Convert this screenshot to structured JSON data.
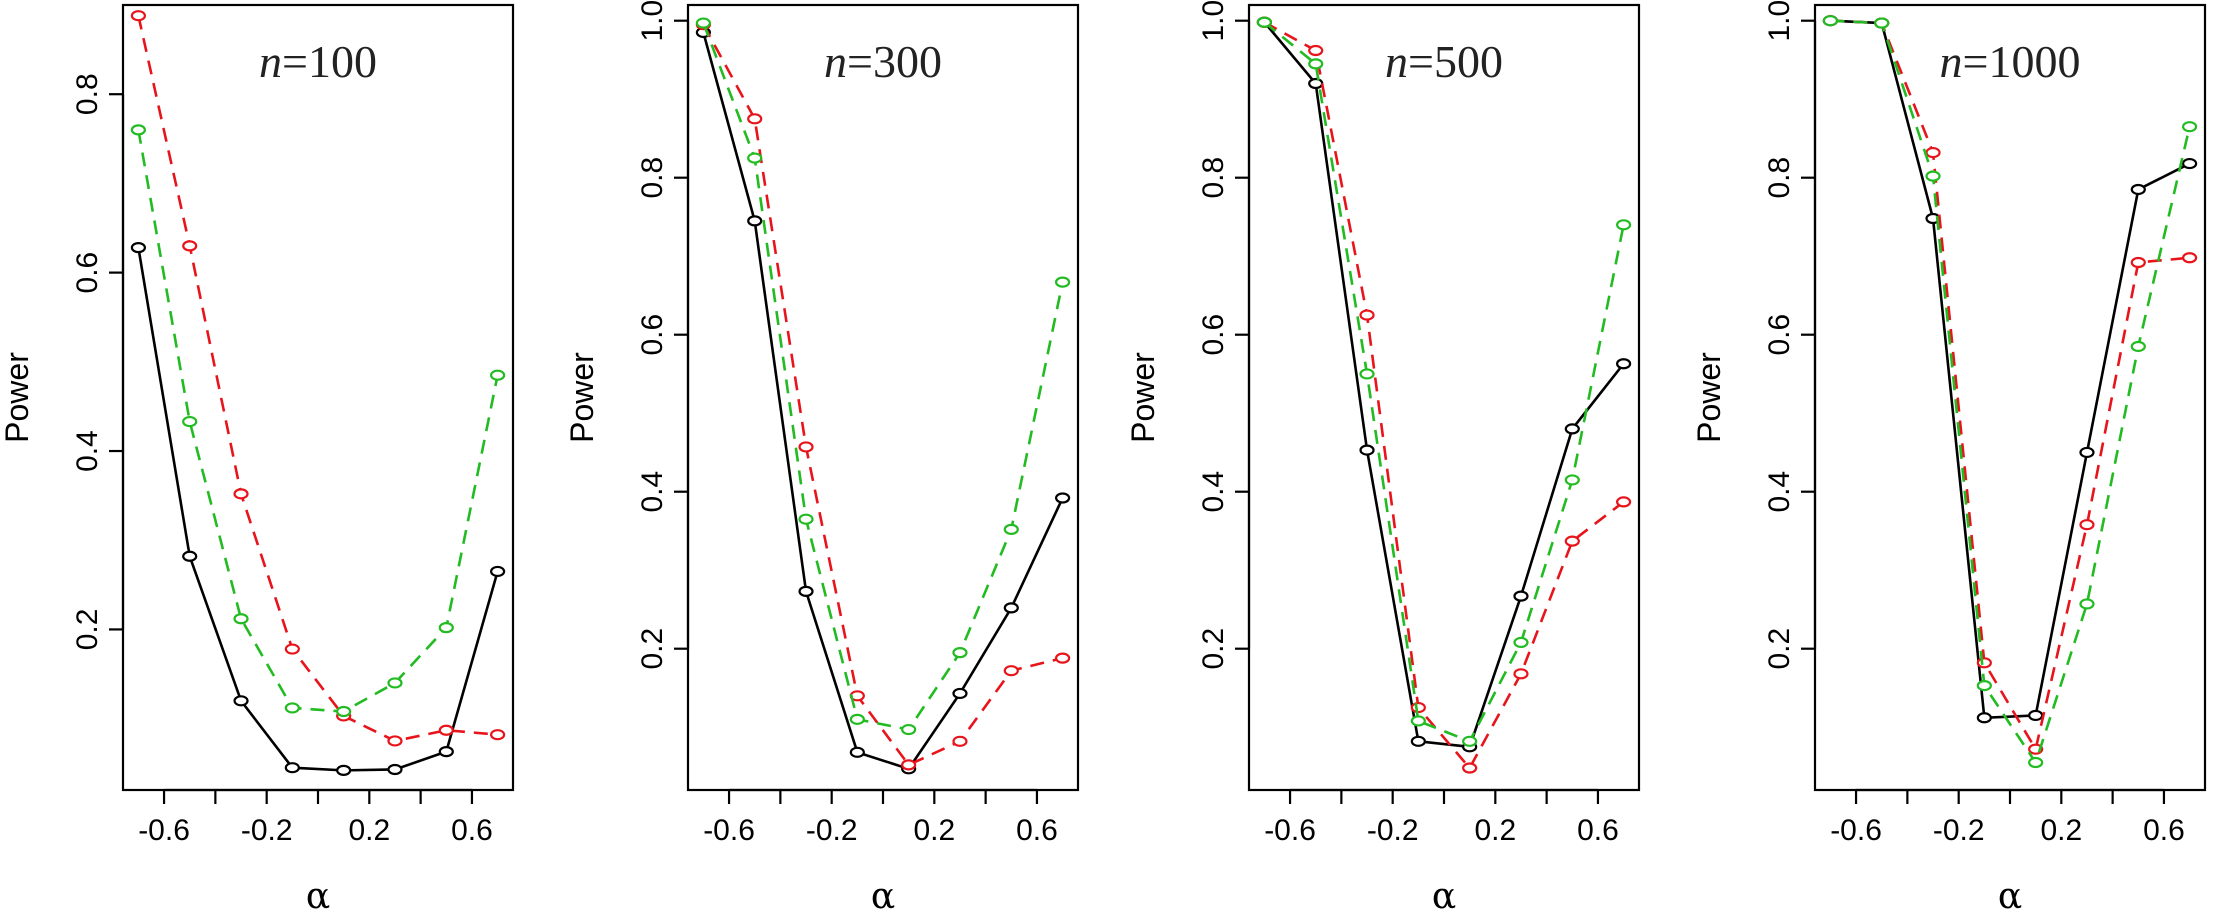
{
  "chart_data": [
    {
      "type": "line",
      "title_n": "n",
      "title_value": "=100",
      "xlabel": "α",
      "ylabel": "Power",
      "xlim": [
        -0.76,
        0.76
      ],
      "ylim": [
        0.02,
        0.9
      ],
      "xticks": [
        -0.6,
        -0.4,
        -0.2,
        0.0,
        0.2,
        0.4,
        0.6
      ],
      "xtick_labels": [
        "-0.6",
        "",
        "-0.2",
        "",
        "0.2",
        "",
        "0.6"
      ],
      "yticks": [
        0.2,
        0.4,
        0.6,
        0.8
      ],
      "ytick_labels": [
        "0.2",
        "0.4",
        "0.6",
        "0.8"
      ],
      "x": [
        -0.7,
        -0.5,
        -0.3,
        -0.1,
        0.1,
        0.3,
        0.5,
        0.7
      ],
      "series": [
        {
          "color": "#000000",
          "dash": "solid",
          "values": [
            0.628,
            0.282,
            0.12,
            0.045,
            0.042,
            0.043,
            0.063,
            0.265
          ]
        },
        {
          "color": "#e8141b",
          "dash": "dashed",
          "values": [
            0.888,
            0.63,
            0.352,
            0.178,
            0.103,
            0.075,
            0.087,
            0.082
          ]
        },
        {
          "color": "#22bb22",
          "dash": "dashed",
          "values": [
            0.76,
            0.433,
            0.212,
            0.112,
            0.108,
            0.14,
            0.202,
            0.485
          ]
        }
      ]
    },
    {
      "type": "line",
      "title_n": "n",
      "title_value": "=300",
      "xlabel": "α",
      "ylabel": "Power",
      "xlim": [
        -0.76,
        0.76
      ],
      "ylim": [
        0.02,
        1.02
      ],
      "xticks": [
        -0.6,
        -0.4,
        -0.2,
        0.0,
        0.2,
        0.4,
        0.6
      ],
      "xtick_labels": [
        "-0.6",
        "",
        "-0.2",
        "",
        "0.2",
        "",
        "0.6"
      ],
      "yticks": [
        0.2,
        0.4,
        0.6,
        0.8,
        1.0
      ],
      "ytick_labels": [
        "0.2",
        "0.4",
        "0.6",
        "0.8",
        "1.0"
      ],
      "x": [
        -0.7,
        -0.5,
        -0.3,
        -0.1,
        0.1,
        0.3,
        0.5,
        0.7
      ],
      "series": [
        {
          "color": "#000000",
          "dash": "solid",
          "values": [
            0.985,
            0.745,
            0.273,
            0.068,
            0.047,
            0.143,
            0.252,
            0.392
          ]
        },
        {
          "color": "#e8141b",
          "dash": "dashed",
          "values": [
            0.995,
            0.875,
            0.457,
            0.14,
            0.052,
            0.082,
            0.172,
            0.188
          ]
        },
        {
          "color": "#22bb22",
          "dash": "dashed",
          "values": [
            0.997,
            0.825,
            0.365,
            0.11,
            0.097,
            0.195,
            0.352,
            0.667
          ]
        }
      ]
    },
    {
      "type": "line",
      "title_n": "n",
      "title_value": "=500",
      "xlabel": "α",
      "ylabel": "Power",
      "xlim": [
        -0.76,
        0.76
      ],
      "ylim": [
        0.02,
        1.02
      ],
      "xticks": [
        -0.6,
        -0.4,
        -0.2,
        0.0,
        0.2,
        0.4,
        0.6
      ],
      "xtick_labels": [
        "-0.6",
        "",
        "-0.2",
        "",
        "0.2",
        "",
        "0.6"
      ],
      "yticks": [
        0.2,
        0.4,
        0.6,
        0.8,
        1.0
      ],
      "ytick_labels": [
        "0.2",
        "0.4",
        "0.6",
        "0.8",
        "1.0"
      ],
      "x": [
        -0.7,
        -0.5,
        -0.3,
        -0.1,
        0.1,
        0.3,
        0.5,
        0.7
      ],
      "series": [
        {
          "color": "#000000",
          "dash": "solid",
          "values": [
            0.998,
            0.92,
            0.453,
            0.082,
            0.075,
            0.267,
            0.48,
            0.563
          ]
        },
        {
          "color": "#e8141b",
          "dash": "dashed",
          "values": [
            0.998,
            0.962,
            0.625,
            0.125,
            0.048,
            0.168,
            0.337,
            0.387
          ]
        },
        {
          "color": "#22bb22",
          "dash": "dashed",
          "values": [
            0.998,
            0.945,
            0.55,
            0.108,
            0.082,
            0.208,
            0.415,
            0.74
          ]
        }
      ]
    },
    {
      "type": "line",
      "title_n": "n",
      "title_value": "=1000",
      "xlabel": "α",
      "ylabel": "Power",
      "xlim": [
        -0.76,
        0.76
      ],
      "ylim": [
        0.02,
        1.02
      ],
      "xticks": [
        -0.6,
        -0.4,
        -0.2,
        0.0,
        0.2,
        0.4,
        0.6
      ],
      "xtick_labels": [
        "-0.6",
        "",
        "-0.2",
        "",
        "0.2",
        "",
        "0.6"
      ],
      "yticks": [
        0.2,
        0.4,
        0.6,
        0.8,
        1.0
      ],
      "ytick_labels": [
        "0.2",
        "0.4",
        "0.6",
        "0.8",
        "1.0"
      ],
      "x": [
        -0.7,
        -0.5,
        -0.3,
        -0.1,
        0.1,
        0.3,
        0.5,
        0.7
      ],
      "series": [
        {
          "color": "#000000",
          "dash": "solid",
          "values": [
            1.0,
            0.997,
            0.748,
            0.112,
            0.115,
            0.45,
            0.785,
            0.818
          ]
        },
        {
          "color": "#e8141b",
          "dash": "dashed",
          "values": [
            1.0,
            0.997,
            0.832,
            0.182,
            0.072,
            0.358,
            0.692,
            0.698
          ]
        },
        {
          "color": "#22bb22",
          "dash": "dashed",
          "values": [
            1.0,
            0.997,
            0.802,
            0.153,
            0.055,
            0.257,
            0.585,
            0.865
          ]
        }
      ]
    }
  ]
}
